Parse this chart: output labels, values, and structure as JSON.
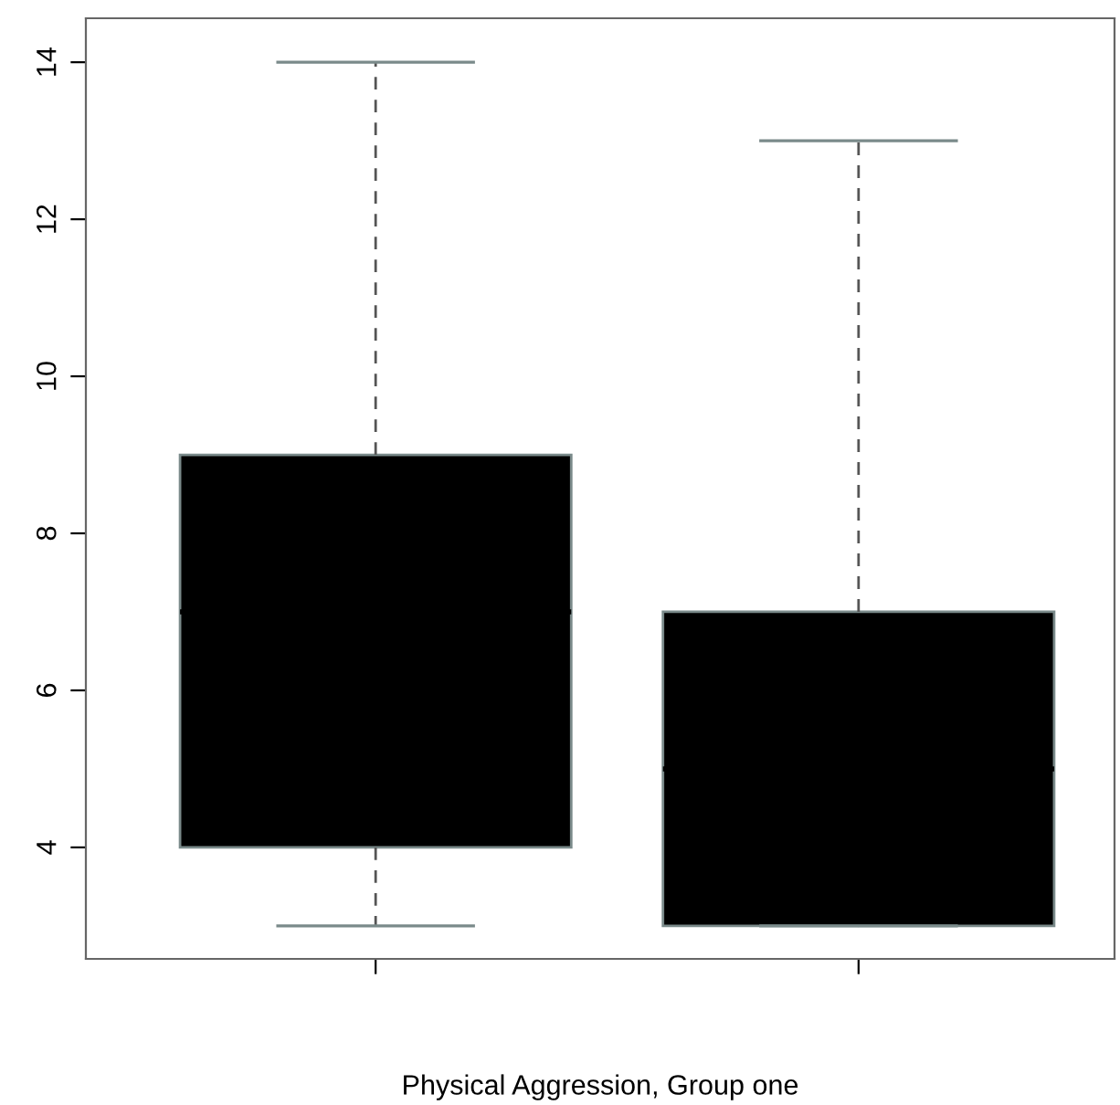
{
  "chart_data": {
    "type": "box",
    "xlabel": "Physical Aggression, Group one",
    "categories": [
      null,
      null
    ],
    "boxes": [
      {
        "low": 3,
        "q1": 4,
        "median": 7,
        "q3": 9,
        "high": 14
      },
      {
        "low": 3,
        "q1": 3,
        "median": 5,
        "q3": 7,
        "high": 13
      }
    ],
    "color": "#000000",
    "ylim": [
      2.58,
      14.56
    ],
    "yticks": [
      4,
      6,
      8,
      10,
      12,
      14
    ],
    "grid": false
  }
}
